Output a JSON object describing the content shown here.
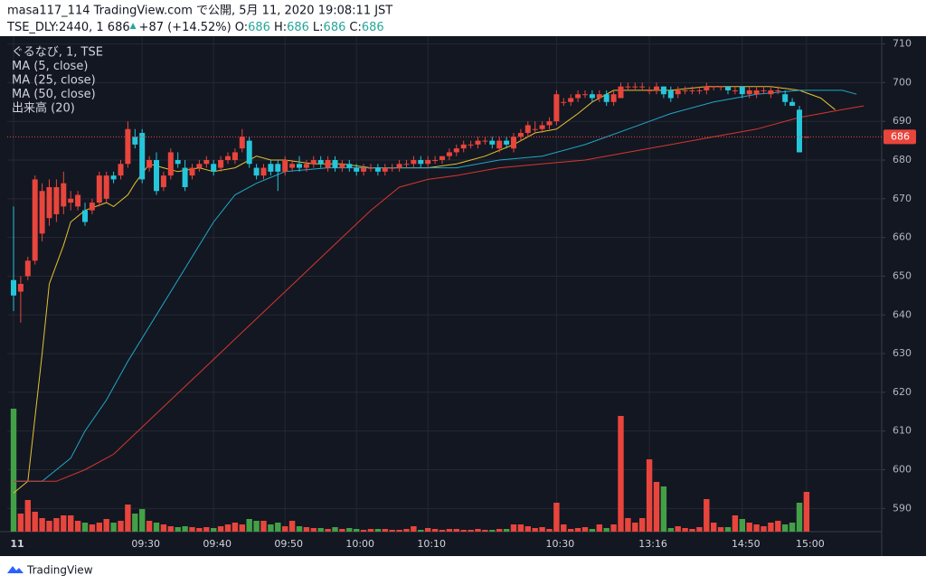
{
  "header": {
    "title": "masa117_114 TradingView.com で公開, 5月 11, 2020 19:08:11 JST",
    "symbol": "TSE_DLY:2440, 1",
    "price": 686,
    "arrow": "▲",
    "change": "+87 (+14.52%)",
    "ohlc": [
      {
        "label": "O:",
        "value": 686
      },
      {
        "label": "H:",
        "value": 686
      },
      {
        "label": "L:",
        "value": 686
      },
      {
        "label": "C:",
        "value": 686
      }
    ]
  },
  "chart_data": {
    "type": "candlestick",
    "legend": [
      "ぐるなび, 1, TSE",
      "出来高 (20)"
    ],
    "ylim": [
      584,
      712
    ],
    "yticks": [
      590,
      600,
      610,
      620,
      630,
      640,
      650,
      660,
      670,
      680,
      690,
      700,
      710
    ],
    "grid": true,
    "xticks": [
      {
        "value": 0,
        "label": "11"
      },
      {
        "value": 18,
        "label": "09:30"
      },
      {
        "value": 28,
        "label": "09:40"
      },
      {
        "value": 38,
        "label": "09:50"
      },
      {
        "value": 48,
        "label": "10:00"
      },
      {
        "value": 58,
        "label": "10:10"
      },
      {
        "value": 76,
        "label": "10:30"
      },
      {
        "value": 89,
        "label": "13:16"
      },
      {
        "value": 102,
        "label": "14:50"
      },
      {
        "value": 111,
        "label": "15:00"
      }
    ],
    "up_color": "#e8453c",
    "down_color": "#26c6da",
    "volume_up_color": "#e8453c",
    "volume_down_color": "#43a047",
    "candles": [
      {
        "o": 649,
        "h": 668,
        "l": 641,
        "c": 645,
        "v": 136
      },
      {
        "o": 646,
        "h": 650,
        "l": 638,
        "c": 648,
        "v": 20
      },
      {
        "o": 650,
        "h": 655,
        "l": 649,
        "c": 654,
        "v": 35
      },
      {
        "o": 654,
        "h": 676,
        "l": 653,
        "c": 675,
        "v": 22
      },
      {
        "o": 661,
        "h": 674,
        "l": 659,
        "c": 672,
        "v": 15
      },
      {
        "o": 665,
        "h": 675,
        "l": 663,
        "c": 673,
        "v": 12
      },
      {
        "o": 666,
        "h": 675,
        "l": 664,
        "c": 673,
        "v": 15
      },
      {
        "o": 668,
        "h": 677,
        "l": 666,
        "c": 674,
        "v": 18
      },
      {
        "o": 669,
        "h": 672,
        "l": 667,
        "c": 670,
        "v": 18
      },
      {
        "o": 668,
        "h": 672,
        "l": 667,
        "c": 671,
        "v": 12
      },
      {
        "o": 667,
        "h": 669,
        "l": 663,
        "c": 664,
        "v": 10
      },
      {
        "o": 667,
        "h": 670,
        "l": 666,
        "c": 669,
        "v": 8
      },
      {
        "o": 669,
        "h": 677,
        "l": 668,
        "c": 676,
        "v": 10
      },
      {
        "o": 670,
        "h": 677,
        "l": 669,
        "c": 676,
        "v": 14
      },
      {
        "o": 676,
        "h": 677,
        "l": 674,
        "c": 675,
        "v": 10
      },
      {
        "o": 676,
        "h": 680,
        "l": 675,
        "c": 679,
        "v": 12
      },
      {
        "o": 679,
        "h": 690,
        "l": 678,
        "c": 688,
        "v": 30
      },
      {
        "o": 686,
        "h": 688,
        "l": 683,
        "c": 684,
        "v": 20
      },
      {
        "o": 687,
        "h": 688,
        "l": 674,
        "c": 675,
        "v": 25
      },
      {
        "o": 678,
        "h": 681,
        "l": 677,
        "c": 680,
        "v": 12
      },
      {
        "o": 680,
        "h": 682,
        "l": 671,
        "c": 672,
        "v": 10
      },
      {
        "o": 673,
        "h": 677,
        "l": 672,
        "c": 676,
        "v": 8
      },
      {
        "o": 676,
        "h": 683,
        "l": 675,
        "c": 682,
        "v": 6
      },
      {
        "o": 680,
        "h": 682,
        "l": 678,
        "c": 679,
        "v": 5
      },
      {
        "o": 678,
        "h": 680,
        "l": 672,
        "c": 673,
        "v": 6
      },
      {
        "o": 676,
        "h": 679,
        "l": 675,
        "c": 678,
        "v": 5
      },
      {
        "o": 678,
        "h": 680,
        "l": 677,
        "c": 679,
        "v": 4
      },
      {
        "o": 679,
        "h": 681,
        "l": 678,
        "c": 680,
        "v": 5
      },
      {
        "o": 679,
        "h": 680,
        "l": 676,
        "c": 677,
        "v": 4
      },
      {
        "o": 678,
        "h": 681,
        "l": 677,
        "c": 680,
        "v": 6
      },
      {
        "o": 680,
        "h": 682,
        "l": 679,
        "c": 681,
        "v": 8
      },
      {
        "o": 680,
        "h": 683,
        "l": 679,
        "c": 682,
        "v": 10
      },
      {
        "o": 683,
        "h": 688,
        "l": 682,
        "c": 686,
        "v": 8
      },
      {
        "o": 685,
        "h": 686,
        "l": 678,
        "c": 679,
        "v": 14
      },
      {
        "o": 678,
        "h": 679,
        "l": 675,
        "c": 676,
        "v": 12
      },
      {
        "o": 676,
        "h": 679,
        "l": 675,
        "c": 678,
        "v": 12
      },
      {
        "o": 679,
        "h": 680,
        "l": 676,
        "c": 677,
        "v": 8
      },
      {
        "o": 679,
        "h": 680,
        "l": 672,
        "c": 677,
        "v": 10
      },
      {
        "o": 677,
        "h": 681,
        "l": 676,
        "c": 680,
        "v": 6
      },
      {
        "o": 678,
        "h": 680,
        "l": 677,
        "c": 679,
        "v": 12
      },
      {
        "o": 679,
        "h": 681,
        "l": 677,
        "c": 678,
        "v": 6
      },
      {
        "o": 678,
        "h": 680,
        "l": 677,
        "c": 679,
        "v": 5
      },
      {
        "o": 679,
        "h": 681,
        "l": 678,
        "c": 680,
        "v": 4
      },
      {
        "o": 680,
        "h": 681,
        "l": 678,
        "c": 679,
        "v": 4
      },
      {
        "o": 678,
        "h": 681,
        "l": 677,
        "c": 680,
        "v": 3
      },
      {
        "o": 680,
        "h": 681,
        "l": 677,
        "c": 678,
        "v": 5
      },
      {
        "o": 678,
        "h": 680,
        "l": 677,
        "c": 679,
        "v": 3
      },
      {
        "o": 679,
        "h": 680,
        "l": 677,
        "c": 678,
        "v": 4
      },
      {
        "o": 678,
        "h": 679,
        "l": 676,
        "c": 677,
        "v": 3
      },
      {
        "o": 677,
        "h": 679,
        "l": 676,
        "c": 678,
        "v": 2
      },
      {
        "o": 678,
        "h": 679,
        "l": 677,
        "c": 678,
        "v": 3
      },
      {
        "o": 678,
        "h": 679,
        "l": 676,
        "c": 677,
        "v": 3
      },
      {
        "o": 677,
        "h": 679,
        "l": 676,
        "c": 678,
        "v": 3
      },
      {
        "o": 678,
        "h": 679,
        "l": 677,
        "c": 678,
        "v": 2
      },
      {
        "o": 678,
        "h": 680,
        "l": 677,
        "c": 679,
        "v": 2
      },
      {
        "o": 679,
        "h": 680,
        "l": 678,
        "c": 679,
        "v": 3
      },
      {
        "o": 679,
        "h": 681,
        "l": 678,
        "c": 680,
        "v": 6
      },
      {
        "o": 680,
        "h": 681,
        "l": 678,
        "c": 679,
        "v": 2
      },
      {
        "o": 679,
        "h": 681,
        "l": 678,
        "c": 680,
        "v": 4
      },
      {
        "o": 680,
        "h": 681,
        "l": 679,
        "c": 680,
        "v": 3
      },
      {
        "o": 680,
        "h": 681,
        "l": 679,
        "c": 681,
        "v": 2
      },
      {
        "o": 681,
        "h": 683,
        "l": 680,
        "c": 682,
        "v": 3
      },
      {
        "o": 682,
        "h": 684,
        "l": 681,
        "c": 683,
        "v": 3
      },
      {
        "o": 683,
        "h": 685,
        "l": 682,
        "c": 684,
        "v": 2
      },
      {
        "o": 684,
        "h": 685,
        "l": 683,
        "c": 684,
        "v": 2
      },
      {
        "o": 684,
        "h": 686,
        "l": 683,
        "c": 685,
        "v": 3
      },
      {
        "o": 685,
        "h": 686,
        "l": 684,
        "c": 685,
        "v": 2
      },
      {
        "o": 685,
        "h": 686,
        "l": 683,
        "c": 684,
        "v": 2
      },
      {
        "o": 683,
        "h": 686,
        "l": 682,
        "c": 685,
        "v": 3
      },
      {
        "o": 685,
        "h": 686,
        "l": 683,
        "c": 684,
        "v": 3
      },
      {
        "o": 683,
        "h": 687,
        "l": 682,
        "c": 686,
        "v": 8
      },
      {
        "o": 686,
        "h": 688,
        "l": 685,
        "c": 687,
        "v": 8
      },
      {
        "o": 687,
        "h": 690,
        "l": 686,
        "c": 689,
        "v": 6
      },
      {
        "o": 688,
        "h": 690,
        "l": 687,
        "c": 688,
        "v": 4
      },
      {
        "o": 688,
        "h": 690,
        "l": 687,
        "c": 689,
        "v": 5
      },
      {
        "o": 689,
        "h": 691,
        "l": 688,
        "c": 690,
        "v": 3
      },
      {
        "o": 690,
        "h": 698,
        "l": 689,
        "c": 697,
        "v": 32
      },
      {
        "o": 695,
        "h": 696,
        "l": 694,
        "c": 695,
        "v": 8
      },
      {
        "o": 695,
        "h": 697,
        "l": 694,
        "c": 696,
        "v": 3
      },
      {
        "o": 696,
        "h": 698,
        "l": 695,
        "c": 697,
        "v": 4
      },
      {
        "o": 697,
        "h": 698,
        "l": 696,
        "c": 697,
        "v": 5
      },
      {
        "o": 697,
        "h": 698,
        "l": 695,
        "c": 696,
        "v": 3
      },
      {
        "o": 696,
        "h": 698,
        "l": 695,
        "c": 697,
        "v": 8
      },
      {
        "o": 697,
        "h": 698,
        "l": 694,
        "c": 695,
        "v": 4
      },
      {
        "o": 695,
        "h": 698,
        "l": 694,
        "c": 697,
        "v": 8
      },
      {
        "o": 696,
        "h": 700,
        "l": 696,
        "c": 699,
        "v": 128
      },
      {
        "o": 699,
        "h": 700,
        "l": 698,
        "c": 699,
        "v": 15
      },
      {
        "o": 699,
        "h": 700,
        "l": 698,
        "c": 699,
        "v": 10
      },
      {
        "o": 699,
        "h": 700,
        "l": 698,
        "c": 699,
        "v": 15
      },
      {
        "o": 698,
        "h": 699,
        "l": 697,
        "c": 698,
        "v": 80
      },
      {
        "o": 698,
        "h": 700,
        "l": 697,
        "c": 699,
        "v": 55
      },
      {
        "o": 699,
        "h": 699,
        "l": 696,
        "c": 697,
        "v": 50
      },
      {
        "o": 698,
        "h": 699,
        "l": 695,
        "c": 696,
        "v": 4
      },
      {
        "o": 697,
        "h": 699,
        "l": 696,
        "c": 698,
        "v": 6
      },
      {
        "o": 698,
        "h": 699,
        "l": 697,
        "c": 698,
        "v": 4
      },
      {
        "o": 698,
        "h": 699,
        "l": 697,
        "c": 698,
        "v": 3
      },
      {
        "o": 698,
        "h": 699,
        "l": 697,
        "c": 698,
        "v": 5
      },
      {
        "o": 698,
        "h": 700,
        "l": 697,
        "c": 699,
        "v": 36
      },
      {
        "o": 699,
        "h": 699,
        "l": 698,
        "c": 699,
        "v": 10
      },
      {
        "o": 699,
        "h": 699,
        "l": 698,
        "c": 699,
        "v": 5
      },
      {
        "o": 699,
        "h": 699,
        "l": 697,
        "c": 698,
        "v": 5
      },
      {
        "o": 698,
        "h": 699,
        "l": 697,
        "c": 698,
        "v": 18
      },
      {
        "o": 699,
        "h": 699,
        "l": 696,
        "c": 697,
        "v": 14
      },
      {
        "o": 697,
        "h": 699,
        "l": 696,
        "c": 698,
        "v": 10
      },
      {
        "o": 697,
        "h": 699,
        "l": 696,
        "c": 698,
        "v": 8
      },
      {
        "o": 698,
        "h": 699,
        "l": 697,
        "c": 698,
        "v": 6
      },
      {
        "o": 697,
        "h": 699,
        "l": 696,
        "c": 698,
        "v": 10
      },
      {
        "o": 698,
        "h": 699,
        "l": 697,
        "c": 698,
        "v": 12
      },
      {
        "o": 697,
        "h": 698,
        "l": 694,
        "c": 695,
        "v": 8
      },
      {
        "o": 695,
        "h": 696,
        "l": 694,
        "c": 694,
        "v": 10
      },
      {
        "o": 693,
        "h": 694,
        "l": 682,
        "c": 682,
        "v": 32
      },
      {
        "o": 686,
        "h": 686,
        "l": 686,
        "c": 686,
        "v": 44
      }
    ],
    "series": [
      {
        "name": "MA (5, close)",
        "color": "#e5c230",
        "x": [
          0,
          2,
          4,
          5,
          7,
          8,
          10,
          13,
          14,
          16,
          17,
          19,
          21,
          23,
          26,
          28,
          31,
          34,
          36,
          38,
          42,
          46,
          50,
          54,
          58,
          62,
          66,
          70,
          73,
          76,
          79,
          81,
          84,
          88,
          92,
          97,
          102,
          106,
          110,
          113,
          115
        ],
        "values": [
          594,
          597,
          630,
          648,
          658,
          664,
          667,
          669,
          668,
          671,
          674,
          679,
          678,
          677,
          678,
          677,
          678,
          681,
          680,
          680,
          679,
          679,
          678,
          678,
          678,
          679,
          681,
          684,
          687,
          688,
          692,
          695,
          698,
          698,
          698,
          699,
          699,
          699,
          698,
          696,
          693
        ]
      },
      {
        "name": "MA (25, close)",
        "color": "#1fa9c9",
        "x": [
          0,
          4,
          6,
          8,
          10,
          13,
          16,
          19,
          22,
          25,
          28,
          31,
          34,
          38,
          44,
          50,
          58,
          62,
          68,
          74,
          80,
          86,
          92,
          98,
          104,
          110,
          116,
          118
        ],
        "values": [
          597,
          597,
          600,
          603,
          610,
          618,
          628,
          637,
          646,
          655,
          664,
          671,
          674,
          677,
          678,
          678,
          678,
          678,
          680,
          681,
          684,
          688,
          692,
          695,
          697,
          698,
          698,
          697
        ]
      },
      {
        "name": "MA (50, close)",
        "color": "#d6372e",
        "x": [
          0,
          6,
          10,
          14,
          18,
          22,
          26,
          30,
          34,
          38,
          42,
          46,
          50,
          54,
          58,
          62,
          68,
          74,
          80,
          86,
          92,
          98,
          104,
          110,
          116,
          119
        ],
        "values": [
          597,
          597,
          600,
          604,
          611,
          618,
          625,
          632,
          639,
          646,
          653,
          660,
          667,
          673,
          675,
          676,
          678,
          679,
          680,
          682,
          684,
          686,
          688,
          691,
          693,
          694
        ]
      }
    ]
  },
  "footer": {
    "logo": "TradingView"
  }
}
